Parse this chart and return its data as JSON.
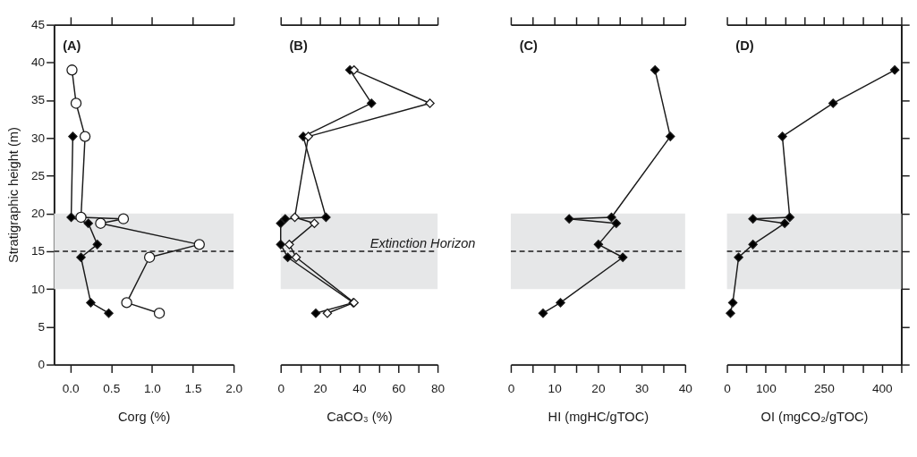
{
  "chart_data": [
    {
      "type": "line",
      "title": "(A)",
      "xlabel": "Corg (%)",
      "ylabel": "Stratigraphic height (m)",
      "xlim": [
        -0.2,
        2.0
      ],
      "xticks": [
        {
          "value": 0,
          "label": "0.0"
        },
        {
          "value": 0.5,
          "label": "0.5"
        },
        {
          "value": 1,
          "label": "1.0"
        },
        {
          "value": 1.5,
          "label": "1.5"
        },
        {
          "value": 2,
          "label": "2.0"
        }
      ],
      "ylim": [
        0,
        45
      ],
      "yticks": [
        0,
        5,
        10,
        15,
        20,
        25,
        30,
        35,
        40,
        45
      ],
      "bands": [
        {
          "axis": "y",
          "from": 10,
          "to": 20,
          "color": "#e6e7e8"
        }
      ],
      "ref_lines": [
        {
          "axis": "y",
          "value": 15,
          "line_style": "dashed"
        }
      ],
      "series": [
        {
          "marker": "circle",
          "color": "#ffffff",
          "x": [
            0.02,
            0.07,
            0.18,
            0.13,
            0.65,
            0.37,
            1.58,
            0.97,
            0.69,
            1.09
          ],
          "values": [
            39.0,
            34.6,
            30.2,
            19.5,
            19.3,
            18.7,
            15.9,
            14.2,
            8.2,
            6.8
          ]
        },
        {
          "marker": "diamond",
          "color": "#000000",
          "x": [
            0.03,
            0.01,
            0.22,
            0.33,
            0.13,
            0.25,
            0.47
          ],
          "values": [
            30.2,
            19.5,
            18.7,
            15.9,
            14.2,
            8.2,
            6.8
          ]
        }
      ]
    },
    {
      "type": "line",
      "title": "(B)",
      "xlabel": "CaCO₃ (%)",
      "tick_labels": "x",
      "xlim": [
        0,
        80
      ],
      "xticks": [
        0,
        {
          "value": 10,
          "label": null
        },
        20,
        {
          "value": 30,
          "label": null
        },
        40,
        {
          "value": 50,
          "label": null
        },
        60,
        {
          "value": 70,
          "label": null
        },
        80
      ],
      "ylim": [
        0,
        45
      ],
      "yticks": [
        0,
        5,
        10,
        15,
        20,
        25,
        30,
        35,
        40,
        45
      ],
      "bands": [
        {
          "axis": "y",
          "from": 10,
          "to": 20,
          "color": "#e6e7e8"
        }
      ],
      "ref_lines": [
        {
          "axis": "y",
          "value": 15,
          "line_style": "dashed",
          "label": "Extinction Horizon"
        }
      ],
      "series": [
        {
          "marker": "diamond",
          "color": "#000000",
          "x": [
            35.3,
            46.3,
            11.5,
            23.1,
            2.3,
            0,
            0,
            3.6,
            37.0,
            17.9
          ],
          "values": [
            39.0,
            34.6,
            30.2,
            19.5,
            19.3,
            18.7,
            15.9,
            14.2,
            8.2,
            6.8
          ]
        },
        {
          "marker": "diamond",
          "color": "#ffffff",
          "x": [
            37.4,
            76.1,
            14.1,
            7.2,
            17.2,
            4.4,
            7.9,
            37.4,
            23.8
          ],
          "values": [
            39.0,
            34.6,
            30.2,
            19.5,
            18.7,
            15.9,
            14.2,
            8.2,
            6.8
          ]
        }
      ]
    },
    {
      "type": "line",
      "title": "(C)",
      "xlabel": "HI (mgHC/gTOC)",
      "tick_labels": "x",
      "xlim": [
        0,
        40
      ],
      "xticks": [
        0,
        {
          "value": 5,
          "label": null
        },
        10,
        {
          "value": 15,
          "label": null
        },
        20,
        {
          "value": 25,
          "label": null
        },
        30,
        {
          "value": 35,
          "label": null
        },
        40
      ],
      "ylim": [
        0,
        45
      ],
      "yticks": [
        0,
        5,
        10,
        15,
        20,
        25,
        30,
        35,
        40,
        45
      ],
      "bands": [
        {
          "axis": "y",
          "from": 10,
          "to": 20,
          "color": "#e6e7e8"
        }
      ],
      "ref_lines": [
        {
          "axis": "y",
          "value": 15,
          "line_style": "dashed"
        }
      ],
      "series": [
        {
          "marker": "diamond",
          "color": "#000000",
          "x": [
            33.1,
            36.6,
            23.1,
            13.4,
            24.2,
            20.1,
            25.7,
            11.4,
            7.4
          ],
          "values": [
            39.0,
            30.2,
            19.5,
            19.3,
            18.7,
            15.9,
            14.2,
            8.2,
            6.8
          ]
        }
      ]
    },
    {
      "type": "line",
      "title": "(D)",
      "xlabel": "OI (mgCO₂/gTOC)",
      "tick_labels": "x",
      "xlim": [
        0,
        450
      ],
      "xticks": [
        0,
        {
          "value": 50,
          "label": null
        },
        100,
        {
          "value": 150,
          "label": null
        },
        {
          "value": 200,
          "label": null
        },
        250,
        {
          "value": 300,
          "label": null
        },
        {
          "value": 350,
          "label": null
        },
        400,
        {
          "value": 450,
          "label": null
        }
      ],
      "ylim": [
        0,
        45
      ],
      "yticks": [
        0,
        5,
        10,
        15,
        20,
        25,
        30,
        35,
        40,
        45
      ],
      "bands": [
        {
          "axis": "y",
          "from": 10,
          "to": 20,
          "color": "#e6e7e8"
        }
      ],
      "ref_lines": [
        {
          "axis": "y",
          "value": 15,
          "line_style": "dashed"
        }
      ],
      "series": [
        {
          "marker": "diamond",
          "color": "#000000",
          "x": [
            433,
            274,
            143,
            162,
            67,
            149,
            67,
            30,
            15,
            9
          ],
          "values": [
            39.0,
            34.6,
            30.2,
            19.5,
            19.3,
            18.7,
            15.9,
            14.2,
            8.2,
            6.8
          ]
        }
      ]
    }
  ]
}
